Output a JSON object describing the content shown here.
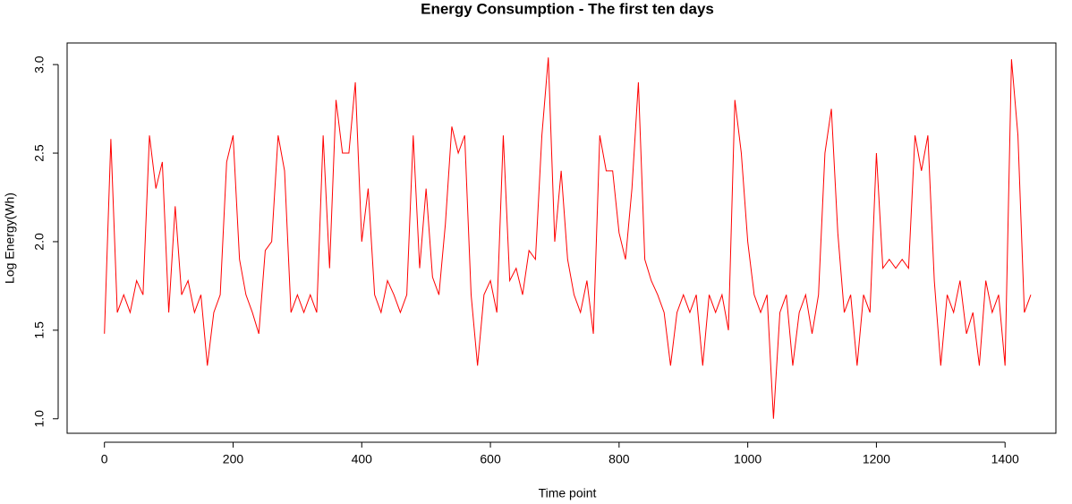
{
  "chart_data": {
    "type": "line",
    "title": "Energy Consumption - The first ten days",
    "x_label": "Time point",
    "y_label": "Log Energy(Wh)",
    "color": "#ff0000",
    "grid": false,
    "x": [
      0,
      10,
      20,
      30,
      40,
      50,
      60,
      70,
      80,
      90,
      100,
      110,
      120,
      130,
      140,
      150,
      160,
      170,
      180,
      190,
      200,
      210,
      220,
      230,
      240,
      250,
      260,
      270,
      280,
      290,
      300,
      310,
      320,
      330,
      340,
      350,
      360,
      370,
      380,
      390,
      400,
      410,
      420,
      430,
      440,
      450,
      460,
      470,
      480,
      490,
      500,
      510,
      520,
      530,
      540,
      550,
      560,
      570,
      580,
      590,
      600,
      610,
      620,
      630,
      640,
      650,
      660,
      670,
      680,
      690,
      700,
      710,
      720,
      730,
      740,
      750,
      760,
      770,
      780,
      790,
      800,
      810,
      820,
      830,
      840,
      850,
      860,
      870,
      880,
      890,
      900,
      910,
      920,
      930,
      940,
      950,
      960,
      970,
      980,
      990,
      1000,
      1010,
      1020,
      1030,
      1040,
      1050,
      1060,
      1070,
      1080,
      1090,
      1100,
      1110,
      1120,
      1130,
      1140,
      1150,
      1160,
      1170,
      1180,
      1190,
      1200,
      1210,
      1220,
      1230,
      1240,
      1250,
      1260,
      1270,
      1280,
      1290,
      1300,
      1310,
      1320,
      1330,
      1340,
      1350,
      1360,
      1370,
      1380,
      1390,
      1400,
      1410,
      1420,
      1430,
      1440
    ],
    "values": [
      1.48,
      2.58,
      1.6,
      1.7,
      1.6,
      1.78,
      1.7,
      2.6,
      2.3,
      2.45,
      1.6,
      2.2,
      1.7,
      1.78,
      1.6,
      1.7,
      1.3,
      1.6,
      1.7,
      2.45,
      2.6,
      1.9,
      1.7,
      1.6,
      1.48,
      1.95,
      2.0,
      2.6,
      2.4,
      1.6,
      1.7,
      1.6,
      1.7,
      1.6,
      2.6,
      1.85,
      2.8,
      2.5,
      2.5,
      2.9,
      2.0,
      2.3,
      1.7,
      1.6,
      1.78,
      1.7,
      1.6,
      1.7,
      2.6,
      1.85,
      2.3,
      1.8,
      1.7,
      2.1,
      2.65,
      2.5,
      2.6,
      1.7,
      1.3,
      1.7,
      1.78,
      1.6,
      2.6,
      1.78,
      1.85,
      1.7,
      1.95,
      1.9,
      2.6,
      3.04,
      2.0,
      2.4,
      1.9,
      1.7,
      1.6,
      1.78,
      1.48,
      2.6,
      2.4,
      2.4,
      2.05,
      1.9,
      2.3,
      2.9,
      1.9,
      1.78,
      1.7,
      1.6,
      1.3,
      1.6,
      1.7,
      1.6,
      1.7,
      1.3,
      1.7,
      1.6,
      1.7,
      1.5,
      2.8,
      2.5,
      2.0,
      1.7,
      1.6,
      1.7,
      1.0,
      1.6,
      1.7,
      1.3,
      1.6,
      1.7,
      1.48,
      1.7,
      2.5,
      2.75,
      2.05,
      1.6,
      1.7,
      1.3,
      1.7,
      1.6,
      2.5,
      1.85,
      1.9,
      1.85,
      1.9,
      1.85,
      2.6,
      2.4,
      2.6,
      1.78,
      1.3,
      1.7,
      1.6,
      1.78,
      1.48,
      1.6,
      1.3,
      1.78,
      1.6,
      1.7,
      1.3,
      3.03,
      2.6,
      1.6,
      1.7
    ],
    "xlim": [
      -58,
      1479
    ],
    "ylim": [
      0.918,
      3.122
    ],
    "xticks": [
      0,
      200,
      400,
      600,
      800,
      1000,
      1200,
      1400
    ],
    "yticks": [
      {
        "value": 1.0,
        "label": "1.0"
      },
      1.5,
      {
        "value": 2.0,
        "label": "2.0"
      },
      2.5,
      {
        "value": 3.0,
        "label": "3.0"
      }
    ]
  }
}
